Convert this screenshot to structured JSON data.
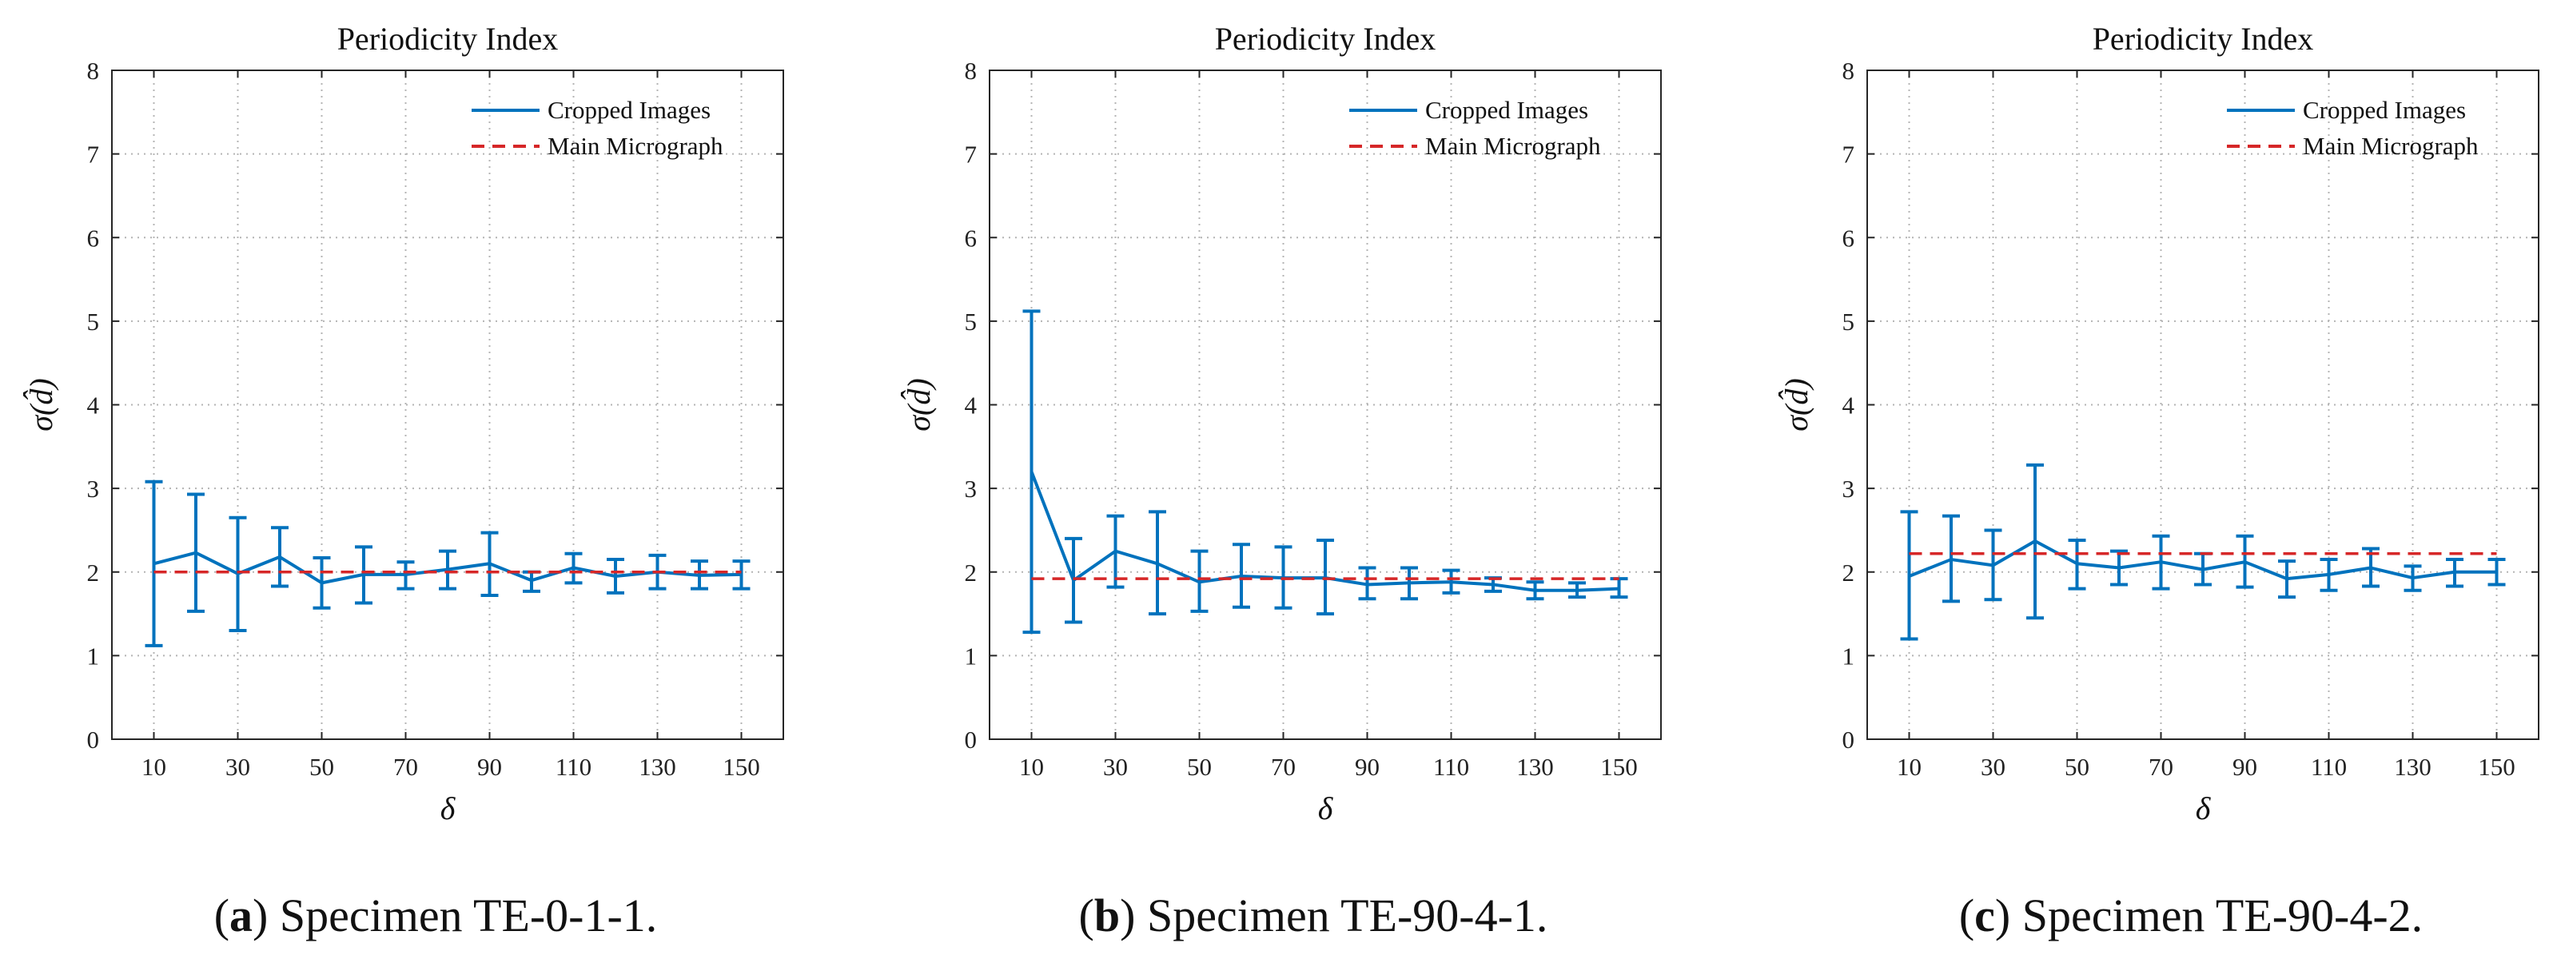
{
  "chart_data": [
    {
      "type": "line",
      "title": "Periodicity Index",
      "xlabel": "δ",
      "ylabel": "σ(d̂)",
      "xlim": [
        0,
        160
      ],
      "ylim": [
        0,
        8
      ],
      "xticks": [
        10,
        30,
        50,
        70,
        90,
        110,
        130,
        150
      ],
      "yticks": [
        0,
        1,
        2,
        3,
        4,
        5,
        6,
        7,
        8
      ],
      "grid": true,
      "legend_position": "top-right",
      "caption_letter": "(a)",
      "caption_text": "Specimen TE-0-1-1.",
      "series": [
        {
          "name": "Cropped Images",
          "style": "solid",
          "color": "#0072BD",
          "x": [
            10,
            20,
            30,
            40,
            50,
            60,
            70,
            80,
            90,
            100,
            110,
            120,
            130,
            140,
            150
          ],
          "y": [
            2.1,
            2.23,
            1.98,
            2.18,
            1.87,
            1.97,
            1.97,
            2.03,
            2.1,
            1.9,
            2.05,
            1.95,
            2.0,
            1.96,
            1.97
          ],
          "err_low": [
            1.12,
            1.53,
            1.3,
            1.83,
            1.57,
            1.63,
            1.8,
            1.8,
            1.72,
            1.77,
            1.87,
            1.75,
            1.8,
            1.8,
            1.8
          ],
          "err_high": [
            3.08,
            2.93,
            2.65,
            2.53,
            2.17,
            2.3,
            2.12,
            2.25,
            2.47,
            2.0,
            2.22,
            2.15,
            2.2,
            2.13,
            2.13
          ]
        },
        {
          "name": "Main Micrograph",
          "style": "dashed",
          "color": "#D62728",
          "x": [
            10,
            150
          ],
          "y": [
            2.0,
            2.0
          ]
        }
      ]
    },
    {
      "type": "line",
      "title": "Periodicity Index",
      "xlabel": "δ",
      "ylabel": "σ(d̂)",
      "xlim": [
        0,
        160
      ],
      "ylim": [
        0,
        8
      ],
      "xticks": [
        10,
        30,
        50,
        70,
        90,
        110,
        130,
        150
      ],
      "yticks": [
        0,
        1,
        2,
        3,
        4,
        5,
        6,
        7,
        8
      ],
      "grid": true,
      "legend_position": "top-right",
      "caption_letter": "(b)",
      "caption_text": "Specimen TE-90-4-1.",
      "series": [
        {
          "name": "Cropped Images",
          "style": "solid",
          "color": "#0072BD",
          "x": [
            10,
            20,
            30,
            40,
            50,
            60,
            70,
            80,
            90,
            100,
            110,
            120,
            130,
            140,
            150
          ],
          "y": [
            3.2,
            1.9,
            2.25,
            2.1,
            1.88,
            1.95,
            1.93,
            1.93,
            1.85,
            1.87,
            1.88,
            1.85,
            1.78,
            1.78,
            1.8
          ],
          "err_low": [
            1.28,
            1.4,
            1.82,
            1.5,
            1.53,
            1.58,
            1.57,
            1.5,
            1.68,
            1.68,
            1.75,
            1.77,
            1.68,
            1.7,
            1.7
          ],
          "err_high": [
            5.12,
            2.4,
            2.67,
            2.72,
            2.25,
            2.33,
            2.3,
            2.38,
            2.05,
            2.05,
            2.02,
            1.93,
            1.88,
            1.87,
            1.92
          ]
        },
        {
          "name": "Main Micrograph",
          "style": "dashed",
          "color": "#D62728",
          "x": [
            10,
            150
          ],
          "y": [
            1.92,
            1.92
          ]
        }
      ]
    },
    {
      "type": "line",
      "title": "Periodicity Index",
      "xlabel": "δ",
      "ylabel": "σ(d̂)",
      "xlim": [
        0,
        160
      ],
      "ylim": [
        0,
        8
      ],
      "xticks": [
        10,
        30,
        50,
        70,
        90,
        110,
        130,
        150
      ],
      "yticks": [
        0,
        1,
        2,
        3,
        4,
        5,
        6,
        7,
        8
      ],
      "grid": true,
      "legend_position": "top-right",
      "caption_letter": "(c)",
      "caption_text": "Specimen TE-90-4-2.",
      "series": [
        {
          "name": "Cropped Images",
          "style": "solid",
          "color": "#0072BD",
          "x": [
            10,
            20,
            30,
            40,
            50,
            60,
            70,
            80,
            90,
            100,
            110,
            120,
            130,
            140,
            150
          ],
          "y": [
            1.95,
            2.15,
            2.08,
            2.37,
            2.1,
            2.05,
            2.12,
            2.03,
            2.12,
            1.92,
            1.97,
            2.05,
            1.93,
            2.0,
            2.0
          ],
          "err_low": [
            1.2,
            1.65,
            1.67,
            1.45,
            1.8,
            1.85,
            1.8,
            1.85,
            1.82,
            1.7,
            1.78,
            1.83,
            1.78,
            1.83,
            1.85
          ],
          "err_high": [
            2.72,
            2.67,
            2.5,
            3.28,
            2.38,
            2.25,
            2.43,
            2.22,
            2.43,
            2.13,
            2.15,
            2.28,
            2.07,
            2.15,
            2.15
          ]
        },
        {
          "name": "Main Micrograph",
          "style": "dashed",
          "color": "#D62728",
          "x": [
            10,
            150
          ],
          "y": [
            2.22,
            2.22
          ]
        }
      ]
    }
  ]
}
